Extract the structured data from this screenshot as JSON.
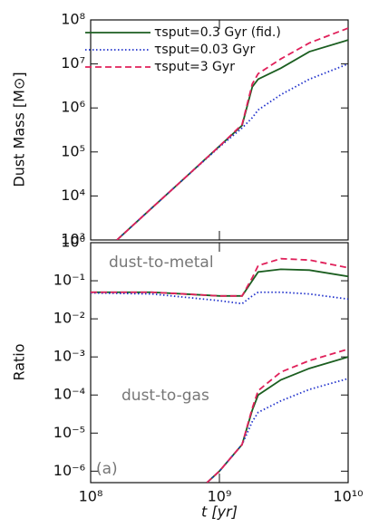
{
  "chart_data": [
    {
      "type": "line",
      "ylabel": "Dust Mass [M⊙]",
      "log_x": true,
      "log_y": true,
      "legend": "upper left",
      "xlim": [
        100000000.0,
        10000000000.0
      ],
      "ylim": [
        1000.0,
        100000000.0
      ],
      "yticks": [
        {
          "value": 1000.0,
          "label": "10³"
        },
        {
          "value": 10000.0,
          "label": "10⁴"
        },
        {
          "value": 100000.0,
          "label": "10⁵"
        },
        {
          "value": 1000000.0,
          "label": "10⁶"
        },
        {
          "value": 10000000.0,
          "label": "10⁷"
        },
        {
          "value": 100000000.0,
          "label": "10⁸"
        }
      ],
      "series": [
        {
          "name": "τsput=0.3 Gyr (fid.)",
          "color": "#1b5e20",
          "dash": "solid",
          "x": [
            160000000.0,
            300000000.0,
            500000000.0,
            1000000000.0,
            1500000000.0,
            1800000000.0,
            2000000000.0,
            3000000000.0,
            5000000000.0,
            10000000000.0
          ],
          "values": [
            1000,
            5400,
            21000,
            135000,
            400000,
            3000000,
            4500000,
            8000000,
            19000000,
            35000000
          ]
        },
        {
          "name": "τsput=0.03 Gyr",
          "color": "#2233cc",
          "dash": "dotted",
          "x": [
            160000000.0,
            300000000.0,
            500000000.0,
            1000000000.0,
            1500000000.0,
            1800000000.0,
            2000000000.0,
            3000000000.0,
            5000000000.0,
            10000000000.0
          ],
          "values": [
            1000,
            5400,
            21000,
            130000,
            350000,
            600000,
            900000,
            2000000,
            4500000,
            10000000
          ]
        },
        {
          "name": "τsput=3 Gyr",
          "color": "#e0205a",
          "dash": "dashed",
          "x": [
            160000000.0,
            300000000.0,
            500000000.0,
            1000000000.0,
            1500000000.0,
            1800000000.0,
            2000000000.0,
            3000000000.0,
            5000000000.0,
            10000000000.0
          ],
          "values": [
            1000,
            5400,
            21000,
            135000,
            420000,
            3500000,
            6000000,
            13000000,
            30000000,
            65000000
          ]
        }
      ]
    },
    {
      "type": "line",
      "ylabel": "Ratio",
      "xlabel": "t [yr]",
      "log_x": true,
      "log_y": true,
      "annotations": [
        "dust-to-metal",
        "dust-to-gas",
        "(a)"
      ],
      "xlim": [
        100000000.0,
        10000000000.0
      ],
      "ylim": [
        5e-07,
        1
      ],
      "xticks": [
        {
          "value": 100000000.0,
          "label": "10⁸"
        },
        {
          "value": 1000000000.0,
          "label": "10⁹"
        },
        {
          "value": 10000000000.0,
          "label": "10¹⁰"
        }
      ],
      "yticks": [
        {
          "value": 1e-06,
          "label": "10⁻⁶"
        },
        {
          "value": 1e-05,
          "label": "10⁻⁵"
        },
        {
          "value": 0.0001,
          "label": "10⁻⁴"
        },
        {
          "value": 0.001,
          "label": "10⁻³"
        },
        {
          "value": 0.01,
          "label": "10⁻²"
        },
        {
          "value": 0.1,
          "label": "10⁻¹"
        },
        {
          "value": 1,
          "label": "10⁰"
        }
      ],
      "series": [
        {
          "color": "#1b5e20",
          "dash": "solid",
          "x": [
            100000000.0,
            300000000.0,
            1000000000.0,
            1500000000.0,
            1800000000.0,
            2000000000.0,
            3000000000.0,
            5000000000.0,
            10000000000.0
          ],
          "values": [
            0.05,
            0.05,
            0.04,
            0.04,
            0.1,
            0.17,
            0.2,
            0.19,
            0.13
          ]
        },
        {
          "color": "#2233cc",
          "dash": "dotted",
          "x": [
            100000000.0,
            300000000.0,
            1000000000.0,
            1500000000.0,
            1800000000.0,
            2000000000.0,
            3000000000.0,
            5000000000.0,
            10000000000.0
          ],
          "values": [
            0.048,
            0.045,
            0.03,
            0.025,
            0.04,
            0.05,
            0.05,
            0.045,
            0.033
          ]
        },
        {
          "color": "#e0205a",
          "dash": "dashed",
          "x": [
            100000000.0,
            300000000.0,
            1000000000.0,
            1500000000.0,
            1800000000.0,
            2000000000.0,
            3000000000.0,
            5000000000.0,
            10000000000.0
          ],
          "values": [
            0.05,
            0.05,
            0.04,
            0.04,
            0.12,
            0.25,
            0.38,
            0.35,
            0.22
          ]
        },
        {
          "color": "#1b5e20",
          "dash": "solid",
          "x": [
            800000000.0,
            1000000000.0,
            1500000000.0,
            1800000000.0,
            2000000000.0,
            3000000000.0,
            5000000000.0,
            10000000000.0
          ],
          "values": [
            5e-07,
            1e-06,
            5e-06,
            4e-05,
            0.0001,
            0.00025,
            0.0005,
            0.001
          ]
        },
        {
          "color": "#2233cc",
          "dash": "dotted",
          "x": [
            800000000.0,
            1000000000.0,
            1500000000.0,
            1800000000.0,
            2000000000.0,
            3000000000.0,
            5000000000.0,
            10000000000.0
          ],
          "values": [
            5e-07,
            1e-06,
            5e-06,
            2e-05,
            3.5e-05,
            7e-05,
            0.00014,
            0.00027
          ]
        },
        {
          "color": "#e0205a",
          "dash": "dashed",
          "x": [
            800000000.0,
            1000000000.0,
            1500000000.0,
            1800000000.0,
            2000000000.0,
            3000000000.0,
            5000000000.0,
            10000000000.0
          ],
          "values": [
            5e-07,
            1e-06,
            5e-06,
            4.5e-05,
            0.00013,
            0.0004,
            0.0008,
            0.0016
          ]
        }
      ]
    }
  ]
}
